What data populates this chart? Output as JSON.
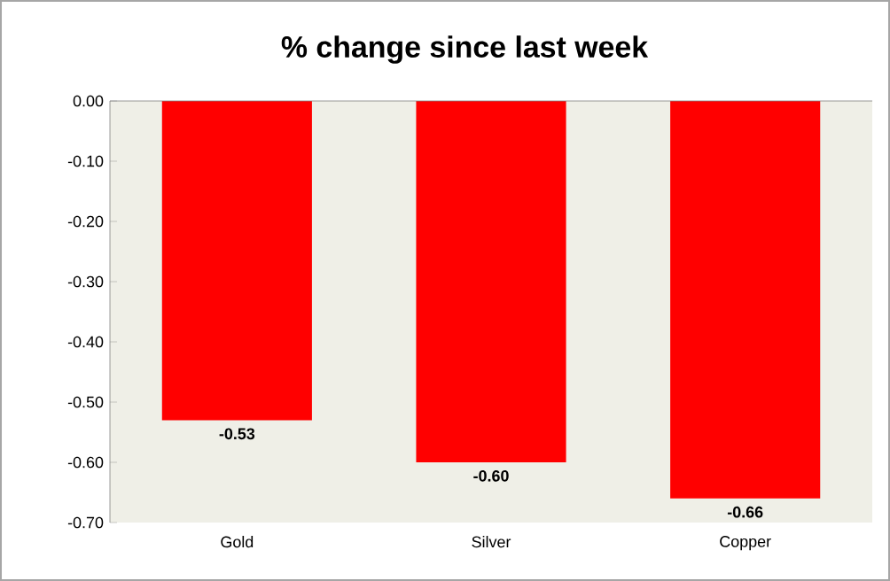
{
  "chart_data": {
    "type": "bar",
    "title": "% change since last week",
    "categories": [
      "Gold",
      "Silver",
      "Copper"
    ],
    "values": [
      -0.53,
      -0.6,
      -0.66
    ],
    "value_labels": [
      "-0.53",
      "-0.60",
      "-0.66"
    ],
    "color": "#ff0000",
    "ylim": [
      -0.7,
      0
    ],
    "yticks": [
      {
        "value": 0,
        "label": "0.00"
      },
      {
        "value": -0.1,
        "label": "-0.10"
      },
      {
        "value": -0.2,
        "label": "-0.20"
      },
      {
        "value": -0.3,
        "label": "-0.30"
      },
      {
        "value": -0.4,
        "label": "-0.40"
      },
      {
        "value": -0.5,
        "label": "-0.50"
      },
      {
        "value": -0.6,
        "label": "-0.60"
      },
      {
        "value": -0.7,
        "label": "-0.70"
      }
    ],
    "grid": false
  }
}
